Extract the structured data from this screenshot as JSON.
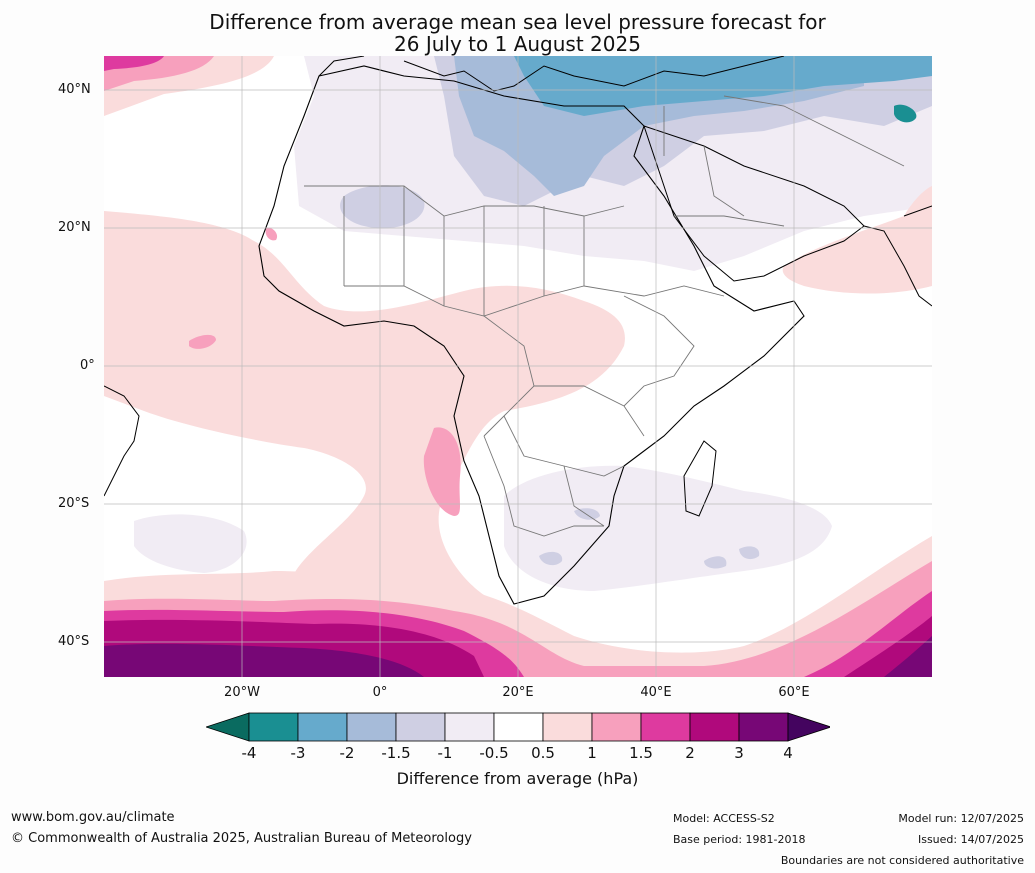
{
  "title_line1": "Difference from average mean sea level pressure forecast for",
  "title_line2": "26 July to 1 August 2025",
  "lat_labels": [
    "40°N",
    "20°N",
    "0°",
    "20°S",
    "40°S"
  ],
  "lon_labels": [
    "20°W",
    "0°",
    "20°E",
    "40°E",
    "60°E"
  ],
  "colorbar": {
    "ticks": [
      "-4",
      "-3",
      "-2",
      "-1.5",
      "-1",
      "-0.5",
      "0.5",
      "1",
      "1.5",
      "2",
      "3",
      "4"
    ],
    "colors": [
      "#1a8f92",
      "#66aacc",
      "#a6bbd9",
      "#cfcfe3",
      "#f1ecf4",
      "#ffffff",
      "#fadcdc",
      "#f7a0bd",
      "#de3a9f",
      "#b0097c",
      "#770776"
    ],
    "low_arrow_color": "#0a6b60",
    "high_arrow_color": "#44045f",
    "label": "Difference from average (hPa)"
  },
  "footer": {
    "url": "www.bom.gov.au/climate",
    "copyright": "© Commonwealth of Australia 2025, Australian Bureau of Meteorology",
    "model": "Model: ACCESS-S2",
    "base_period": "Base period: 1981-2018",
    "model_run": "Model run: 12/07/2025",
    "issued": "Issued: 14/07/2025",
    "disclaimer": "Boundaries are not considered authoritative"
  }
}
